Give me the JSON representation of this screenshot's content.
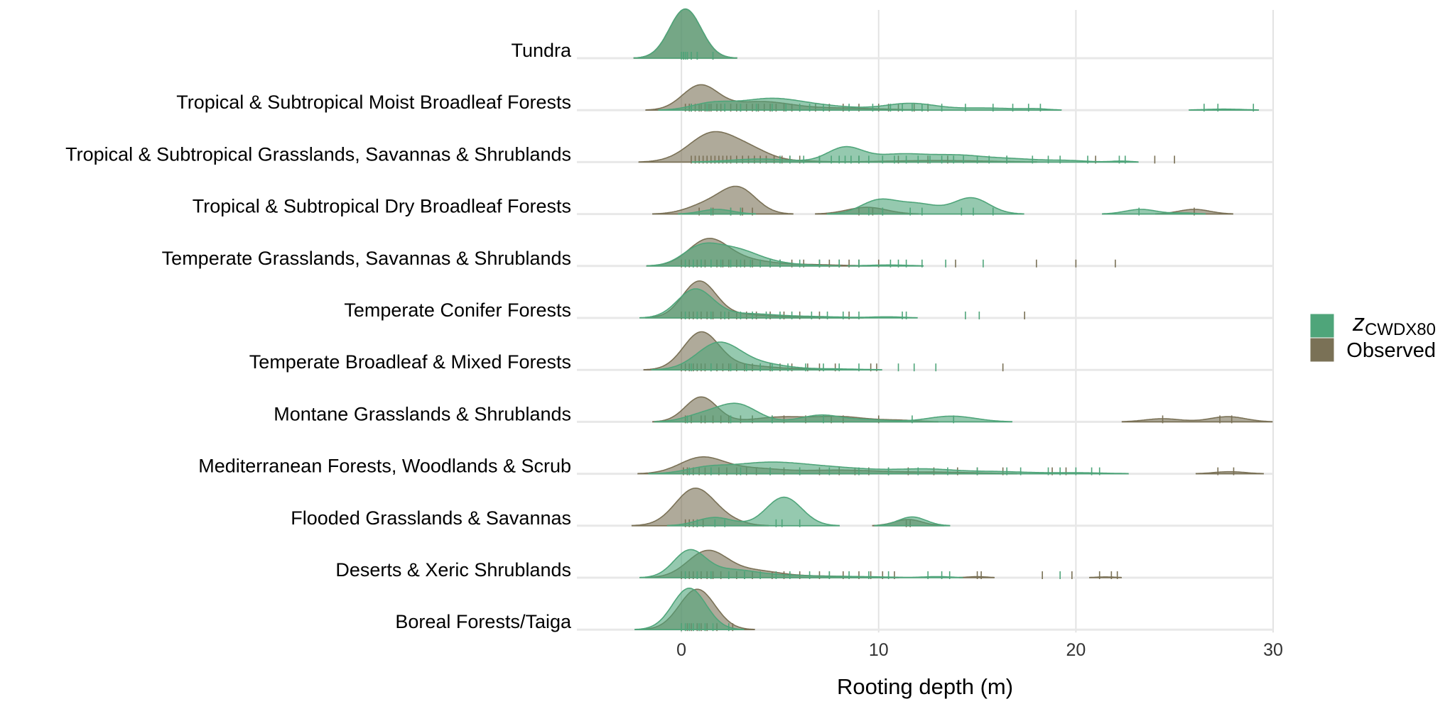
{
  "chart_data": {
    "type": "ridgeline density with rug",
    "xlabel": "Rooting depth (m)",
    "xlim": [
      -5.3,
      30
    ],
    "xticks": [
      0,
      10,
      20,
      30
    ],
    "xtick_labels": [
      "0",
      "10",
      "20",
      "30"
    ],
    "grid": true,
    "legend_position": "right",
    "legend": [
      {
        "key": "z",
        "label_main": "z",
        "label_sub": "CWDX80",
        "color": "#4fa57a"
      },
      {
        "key": "obs",
        "label_main": "Observed",
        "label_sub": "",
        "color": "#7a7156"
      }
    ],
    "categories": [
      {
        "name": "Tundra",
        "z": {
          "peaks": [
            [
              0.2,
              0.95,
              0.8
            ]
          ],
          "rug": [
            0,
            0.1,
            0.2,
            0.3,
            0.5,
            0.8,
            1.6
          ]
        },
        "obs": {
          "peaks": [
            [
              0.2,
              0.95,
              0.8
            ]
          ],
          "rug": [
            0,
            0.1,
            0.2,
            0.3,
            0.5,
            0.8,
            1.6
          ]
        }
      },
      {
        "name": "Tropical & Subtropical Moist Broadleaf Forests",
        "z": {
          "peaks": [
            [
              1.5,
              0.12,
              1.0
            ],
            [
              4.5,
              0.22,
              1.6
            ],
            [
              7.5,
              0.06,
              1.5
            ],
            [
              11.6,
              0.13,
              1.3
            ],
            [
              15.5,
              0.04,
              1.5
            ],
            [
              18,
              0.02,
              0.6
            ],
            [
              27.5,
              0.02,
              1.0
            ]
          ],
          "rug": [
            0.5,
            1.3,
            2.2,
            3,
            3.8,
            4.6,
            5.3,
            6,
            6.5,
            7.2,
            8.5,
            9.7,
            10.6,
            11.2,
            11.7,
            12.2,
            13.2,
            14.4,
            15.8,
            16.8,
            17.6,
            18.2,
            26.5,
            27.2,
            29
          ]
        },
        "obs": {
          "peaks": [
            [
              0.95,
              0.47,
              0.9
            ],
            [
              4,
              0.16,
              1.5
            ],
            [
              8,
              0.04,
              2.0
            ]
          ],
          "rug": [
            0.2,
            0.4,
            0.5,
            0.7,
            0.9,
            1,
            1.2,
            1.4,
            1.5,
            1.8,
            2,
            2.2,
            2.5,
            2.8,
            3,
            3.3,
            3.6,
            3.9,
            4.2,
            4.5,
            4.8,
            5.2,
            5.6,
            6,
            6.8,
            7.5,
            8.2,
            9,
            10,
            10.5,
            11,
            11.8,
            12.5
          ]
        }
      },
      {
        "name": "Tropical & Subtropical Grasslands, Savannas & Shrublands",
        "z": {
          "peaks": [
            [
              4,
              0.06,
              1.5
            ],
            [
              8.3,
              0.28,
              0.9
            ],
            [
              11,
              0.14,
              1.3
            ],
            [
              14,
              0.13,
              1.5
            ],
            [
              17,
              0.05,
              1.2
            ],
            [
              19.5,
              0.03,
              1.0
            ],
            [
              22.3,
              0.02,
              0.5
            ]
          ],
          "rug": [
            5,
            5.5,
            6.2,
            7,
            7.6,
            8,
            8.3,
            8.6,
            9,
            9.5,
            10.2,
            10.8,
            11.4,
            12,
            12.6,
            13.2,
            13.8,
            14.3,
            15,
            15.6,
            16.5,
            17.8,
            18.6,
            19.2,
            20.6,
            22.2,
            22.5
          ]
        },
        "obs": {
          "peaks": [
            [
              1.6,
              0.56,
              1.2
            ],
            [
              3.6,
              0.18,
              1.0
            ],
            [
              6,
              0.02,
              1.0
            ],
            [
              13,
              0.03,
              2.5
            ]
          ],
          "rug": [
            0.5,
            0.7,
            0.9,
            1.1,
            1.3,
            1.5,
            1.7,
            1.9,
            2.1,
            2.3,
            2.5,
            2.8,
            3.1,
            3.4,
            3.7,
            4,
            4.3,
            4.7,
            5.1,
            5.5,
            6,
            7,
            9,
            11,
            12.5,
            13.5,
            16.5,
            21,
            24,
            25
          ]
        }
      },
      {
        "name": "Tropical & Subtropical Dry Broadleaf Forests",
        "z": {
          "peaks": [
            [
              1.8,
              0.09,
              0.8
            ],
            [
              10,
              0.26,
              0.9
            ],
            [
              12,
              0.19,
              1.0
            ],
            [
              14.7,
              0.31,
              0.9
            ],
            [
              23.3,
              0.09,
              0.8
            ],
            [
              25.5,
              0.02,
              0.6
            ]
          ],
          "rug": [
            1.5,
            2.5,
            3,
            9.5,
            10.2,
            11.6,
            12.2,
            14.2,
            14.8,
            15.8,
            23.2
          ]
        },
        "obs": {
          "peaks": [
            [
              1.3,
              0.18,
              1.0
            ],
            [
              2.9,
              0.48,
              0.9
            ],
            [
              9.4,
              0.13,
              1.0
            ],
            [
              26,
              0.09,
              0.8
            ]
          ],
          "rug": [
            0.9,
            1.6,
            2.5,
            3,
            3.1,
            3.6,
            9,
            9.7,
            10.2,
            26
          ]
        }
      },
      {
        "name": "Temperate Grasslands, Savannas & Shrublands",
        "z": {
          "peaks": [
            [
              0.9,
              0.3,
              0.9
            ],
            [
              2.6,
              0.3,
              1.2
            ],
            [
              4.5,
              0.05,
              1.5
            ],
            [
              10.5,
              0.02,
              1.0
            ]
          ],
          "rug": [
            0.2,
            0.6,
            1,
            1.5,
            2,
            2.5,
            3,
            3.5,
            4,
            4.5,
            5,
            6,
            7,
            8,
            9,
            10.6,
            11,
            11.4,
            12.2,
            13.4,
            15.3
          ]
        },
        "obs": {
          "peaks": [
            [
              1.35,
              0.5,
              1.0
            ],
            [
              3.2,
              0.1,
              1.2
            ],
            [
              6,
              0.03,
              1.8
            ]
          ],
          "rug": [
            0,
            0.2,
            0.4,
            0.6,
            0.8,
            1,
            1.2,
            1.5,
            1.8,
            2.1,
            2.4,
            2.8,
            3.2,
            3.6,
            4,
            4.5,
            5,
            5.6,
            6.2,
            7,
            7.5,
            8,
            8.5,
            9,
            10,
            13.9,
            18,
            20,
            22
          ]
        }
      },
      {
        "name": "Temperate Conifer Forests",
        "z": {
          "peaks": [
            [
              0.7,
              0.55,
              0.9
            ],
            [
              3.2,
              0.07,
              1.3
            ],
            [
              6,
              0.03,
              2.0
            ],
            [
              10.5,
              0.02,
              0.8
            ]
          ],
          "rug": [
            0.2,
            0.8,
            1.5,
            2.2,
            3,
            3.6,
            4.3,
            5,
            5.6,
            6.6,
            7.4,
            8.2,
            9,
            11.2,
            11.4,
            14.4,
            15.1
          ]
        },
        "obs": {
          "peaks": [
            [
              0.9,
              0.7,
              0.85
            ],
            [
              3,
              0.06,
              1.2
            ],
            [
              6,
              0.02,
              1.8
            ]
          ],
          "rug": [
            0,
            0.2,
            0.4,
            0.6,
            0.8,
            1,
            1.3,
            1.6,
            2,
            2.4,
            2.8,
            3.3,
            3.8,
            4.5,
            5.2,
            6,
            7,
            8.5,
            17.4
          ]
        }
      },
      {
        "name": "Temperate Broadleaf & Mixed Forests",
        "z": {
          "peaks": [
            [
              1.9,
              0.52,
              1.1
            ],
            [
              4.2,
              0.1,
              1.2
            ],
            [
              7.5,
              0.02,
              1.5
            ]
          ],
          "rug": [
            0.5,
            1.5,
            2.5,
            3.3,
            4,
            4.6,
            5.4,
            6.3,
            7.2,
            8,
            9,
            11,
            11.8,
            12.9
          ]
        },
        "obs": {
          "peaks": [
            [
              1.0,
              0.72,
              0.9
            ],
            [
              3.2,
              0.08,
              1.2
            ],
            [
              6,
              0.02,
              1.5
            ]
          ],
          "rug": [
            0,
            0.2,
            0.4,
            0.6,
            0.8,
            1,
            1.2,
            1.5,
            1.8,
            2.1,
            2.4,
            2.8,
            3.2,
            3.6,
            4,
            4.5,
            5,
            5.6,
            6.4,
            7,
            7.8,
            9.6,
            9.9,
            16.3
          ]
        }
      },
      {
        "name": "Montane Grasslands & Shrublands",
        "z": {
          "peaks": [
            [
              1.0,
              0.12,
              0.9
            ],
            [
              2.8,
              0.34,
              1.0
            ],
            [
              7.1,
              0.13,
              1.0
            ],
            [
              9.5,
              0.04,
              1.0
            ],
            [
              13.7,
              0.11,
              1.2
            ]
          ],
          "rug": [
            0.3,
            2.5,
            4.6,
            7.2,
            11.7,
            13.8
          ]
        },
        "obs": {
          "peaks": [
            [
              1.0,
              0.48,
              0.8
            ],
            [
              5,
              0.09,
              1.3
            ],
            [
              8,
              0.1,
              1.3
            ],
            [
              11,
              0.03,
              1.0
            ],
            [
              24.4,
              0.06,
              0.9
            ],
            [
              27.7,
              0.1,
              0.9
            ]
          ],
          "rug": [
            0.2,
            0.5,
            1,
            1.2,
            1.6,
            2,
            2.4,
            3,
            3.6,
            4.6,
            5.2,
            6.3,
            7.6,
            8.2,
            10,
            24.4,
            27.3,
            27.9
          ]
        }
      },
      {
        "name": "Mediterranean Forests, Woodlands & Scrub",
        "z": {
          "peaks": [
            [
              1.2,
              0.08,
              1.0
            ],
            [
              4.2,
              0.2,
              2.0
            ],
            [
              8,
              0.1,
              2.2
            ],
            [
              12.5,
              0.08,
              1.5
            ],
            [
              16,
              0.04,
              1.5
            ],
            [
              20,
              0.02,
              1.5
            ]
          ],
          "rug": [
            0.4,
            1.5,
            3,
            4.5,
            6,
            7.5,
            9,
            10.5,
            12,
            13.5,
            15,
            16.5,
            17.2,
            18.6,
            19.2,
            20,
            20.8,
            21.2
          ]
        },
        "obs": {
          "peaks": [
            [
              1.0,
              0.3,
              1.1
            ],
            [
              3.5,
              0.1,
              1.5
            ],
            [
              8,
              0.07,
              2.0
            ],
            [
              13,
              0.03,
              2.0
            ],
            [
              27.8,
              0.04,
              0.8
            ]
          ],
          "rug": [
            0.1,
            0.3,
            0.6,
            0.9,
            1.2,
            1.5,
            1.9,
            2.3,
            2.8,
            3.3,
            3.8,
            4.5,
            5.2,
            6,
            7,
            8,
            8.8,
            9.5,
            10.5,
            11.5,
            12.8,
            14,
            15,
            16.3,
            18.8,
            19.5,
            27.2,
            28
          ]
        }
      },
      {
        "name": "Flooded Grasslands & Savannas",
        "z": {
          "peaks": [
            [
              1.7,
              0.16,
              0.9
            ],
            [
              5.2,
              0.55,
              0.9
            ],
            [
              11.7,
              0.17,
              0.7
            ]
          ],
          "rug": [
            0.8,
            1.7,
            2.2,
            4.8,
            5.1,
            6
          ]
        },
        "obs": {
          "peaks": [
            [
              0.7,
              0.72,
              1.0
            ],
            [
              2.5,
              0.06,
              0.8
            ],
            [
              11.5,
              0.12,
              0.7
            ]
          ],
          "rug": [
            0.2,
            0.4,
            0.6,
            0.8,
            1.1,
            11.4,
            11.6
          ]
        }
      },
      {
        "name": "Deserts & Xeric Shrublands",
        "z": {
          "peaks": [
            [
              0.4,
              0.5,
              0.8
            ],
            [
              2.5,
              0.15,
              1.3
            ],
            [
              5.5,
              0.04,
              1.5
            ],
            [
              9,
              0.02,
              1.5
            ],
            [
              13,
              0.02,
              0.7
            ]
          ],
          "rug": [
            0.2,
            0.8,
            1.5,
            2.4,
            3.2,
            4,
            4.8,
            5.5,
            6.5,
            7.5,
            8.5,
            9.5,
            10.5,
            12.5,
            13.2,
            13.6,
            19.2
          ]
        },
        "obs": {
          "peaks": [
            [
              1.3,
              0.5,
              1.0
            ],
            [
              3.6,
              0.13,
              1.3
            ],
            [
              7,
              0.03,
              2.0
            ],
            [
              15,
              0.02,
              0.5
            ],
            [
              21.5,
              0.015,
              0.5
            ]
          ],
          "rug": [
            0,
            0.2,
            0.4,
            0.6,
            0.8,
            1,
            1.3,
            1.6,
            2,
            2.4,
            2.8,
            3.2,
            3.6,
            4,
            4.6,
            5.2,
            6,
            7,
            7.5,
            8.2,
            9,
            9.6,
            10.2,
            10.8,
            15,
            15.2,
            18.3,
            19.8,
            21.2,
            21.8,
            22.1
          ]
        }
      },
      {
        "name": "Boreal Forests/Taiga",
        "z": {
          "peaks": [
            [
              0.4,
              0.8,
              0.85
            ]
          ],
          "rug": [
            0,
            0.2,
            0.4,
            0.6,
            0.9,
            1.2,
            1.6,
            2.4
          ]
        },
        "obs": {
          "peaks": [
            [
              0.8,
              0.78,
              0.9
            ]
          ],
          "rug": [
            0,
            0.3,
            0.5,
            0.8,
            1,
            1.3,
            1.8,
            2.6
          ]
        }
      }
    ]
  }
}
